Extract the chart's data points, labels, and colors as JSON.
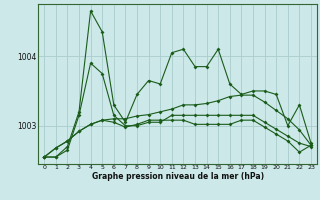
{
  "title": "",
  "xlabel": "Graphe pression niveau de la mer (hPa)",
  "ylabel": "",
  "background_color": "#cce8e8",
  "grid_color": "#aacccc",
  "line_color": "#1a5c1a",
  "ylim": [
    1002.45,
    1004.75
  ],
  "yticks": [
    1003,
    1004
  ],
  "xticks": [
    0,
    1,
    2,
    3,
    4,
    5,
    6,
    7,
    8,
    9,
    10,
    11,
    12,
    13,
    14,
    15,
    16,
    17,
    18,
    19,
    20,
    21,
    22,
    23
  ],
  "series": [
    [
      1002.55,
      1002.55,
      1002.7,
      1003.2,
      1004.65,
      1004.35,
      1003.3,
      1003.05,
      1003.45,
      1003.65,
      1003.6,
      1004.05,
      1004.1,
      1003.85,
      1003.85,
      1004.1,
      1003.6,
      1003.45,
      1003.5,
      1003.5,
      1003.45,
      1003.0,
      1003.3,
      1002.75
    ],
    [
      1002.55,
      1002.55,
      1002.65,
      1003.15,
      1003.9,
      1003.75,
      1003.15,
      1003.0,
      1003.0,
      1003.05,
      1003.05,
      1003.15,
      1003.15,
      1003.15,
      1003.15,
      1003.15,
      1003.15,
      1003.15,
      1003.15,
      1003.05,
      1002.95,
      1002.85,
      1002.75,
      1002.7
    ],
    [
      1002.55,
      1002.68,
      1002.78,
      1002.92,
      1003.02,
      1003.08,
      1003.1,
      1003.1,
      1003.14,
      1003.16,
      1003.2,
      1003.24,
      1003.3,
      1003.3,
      1003.32,
      1003.36,
      1003.42,
      1003.44,
      1003.44,
      1003.34,
      1003.22,
      1003.1,
      1002.94,
      1002.72
    ],
    [
      1002.55,
      1002.68,
      1002.78,
      1002.92,
      1003.02,
      1003.08,
      1003.05,
      1002.98,
      1003.02,
      1003.08,
      1003.08,
      1003.08,
      1003.08,
      1003.02,
      1003.02,
      1003.02,
      1003.02,
      1003.08,
      1003.08,
      1002.98,
      1002.88,
      1002.78,
      1002.62,
      1002.72
    ]
  ]
}
